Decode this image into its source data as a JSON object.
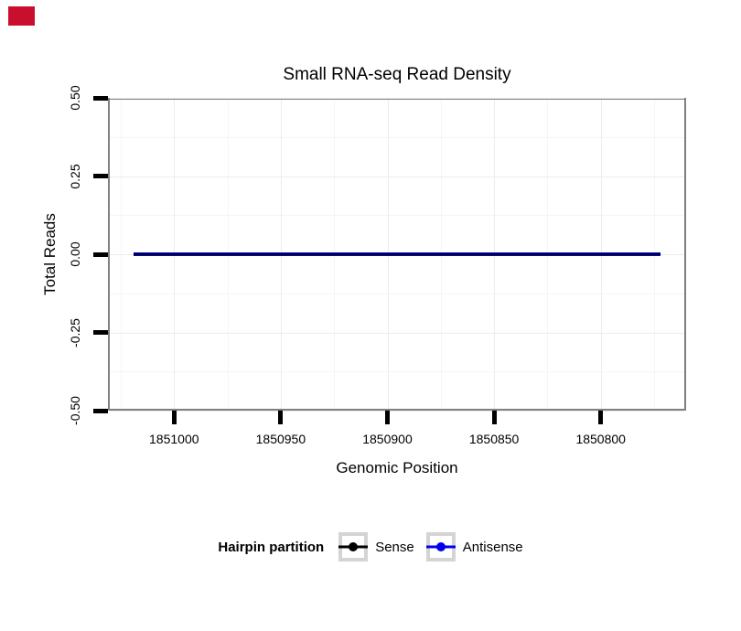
{
  "annotation": {
    "red_box_color": "#c8102e"
  },
  "chart_data": {
    "type": "line",
    "title": "Small RNA-seq Read Density",
    "xlabel": "Genomic Position",
    "ylabel": "Total Reads",
    "x_axis_reversed": true,
    "xlim": [
      1851031,
      1850760
    ],
    "ylim": [
      -0.5,
      0.5
    ],
    "x_ticks": [
      1851000,
      1850950,
      1850900,
      1850850,
      1850800
    ],
    "x_tick_labels": [
      "1851000",
      "1850950",
      "1850900",
      "1850850",
      "1850800"
    ],
    "x_minor_ticks": [
      1851025,
      1850975,
      1850925,
      1850875,
      1850825,
      1850775
    ],
    "y_ticks": [
      0.5,
      0.25,
      0,
      -0.25,
      -0.5
    ],
    "y_tick_labels": [
      "0.50",
      "0.25",
      "0.00",
      "-0.25",
      "-0.50"
    ],
    "y_minor_ticks": [
      0.375,
      0.125,
      -0.125,
      -0.375
    ],
    "grid": true,
    "series": [
      {
        "name": "Sense",
        "color": "#000000",
        "x": [
          1851019,
          1850772
        ],
        "y": [
          0,
          0
        ]
      },
      {
        "name": "Antisense",
        "color": "#0000ee",
        "x": [
          1851019,
          1850772
        ],
        "y": [
          0,
          0
        ]
      }
    ],
    "legend": {
      "title": "Hairpin partition",
      "position": "bottom",
      "entries": [
        {
          "label": "Sense",
          "color": "#000000"
        },
        {
          "label": "Antisense",
          "color": "#0000ee"
        }
      ]
    }
  },
  "colors": {
    "panel_border": "#7f7f7f",
    "grid_major": "#ececec",
    "grid_minor": "#f5f5f5",
    "tick": "#000000",
    "legend_key_border": "#d4d4d4",
    "line_blend_core": "#000000"
  }
}
